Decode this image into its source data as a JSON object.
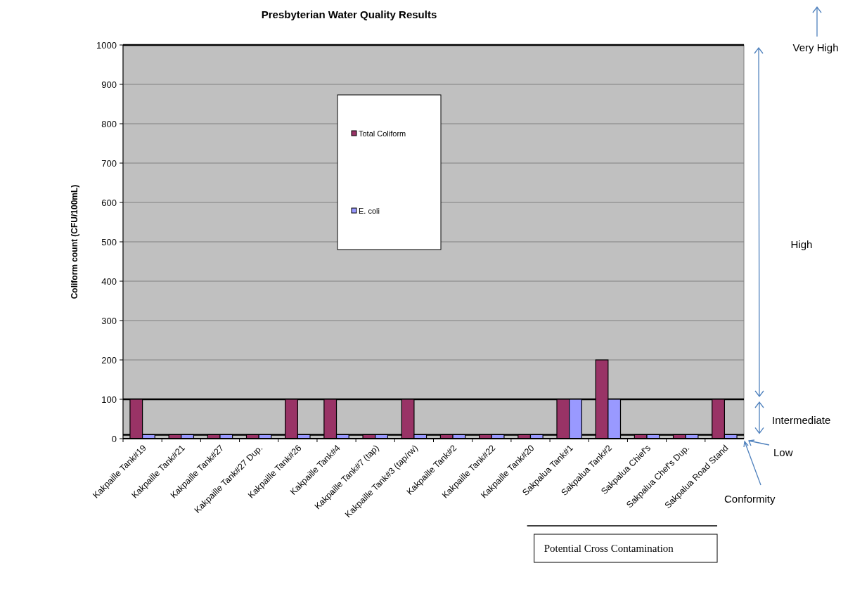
{
  "chart_data": {
    "type": "bar",
    "title": "Presbyterian Water Quality Results",
    "ylabel": "Coliform count (CFU/100mL)",
    "categories": [
      "Kakpaille Tank#19",
      "Kakpaille Tank#21",
      "Kakpaille Tank#27",
      "Kakpaille Tank#27 Dup.",
      "Kakpaille Tank#26",
      "Kakpaille Tank#4",
      "Kakpaille Tank#7 (tap)",
      "Kakpaille Tank#3 (tap/rw)",
      "Kakpaille Tank#2",
      "Kakpaille Tank#22",
      "Kakpaille Tank#20",
      "Sakpalua Tank#1",
      "Sakpalua Tank#2",
      "Sakpalua Chief's",
      "Sakpalua Chef's Dup.",
      "Sakpalua Road Stand"
    ],
    "series": [
      {
        "name": "Total Coliform",
        "color": "#993366",
        "values": [
          100,
          10,
          10,
          10,
          100,
          100,
          10,
          100,
          10,
          10,
          10,
          100,
          200,
          10,
          10,
          100
        ]
      },
      {
        "name": "E. coli",
        "color": "#9999ff",
        "values": [
          10,
          10,
          10,
          10,
          10,
          10,
          10,
          10,
          10,
          10,
          10,
          100,
          100,
          10,
          10,
          10
        ]
      }
    ],
    "ylim": [
      0,
      1000
    ],
    "yticks": [
      0,
      100,
      200,
      300,
      400,
      500,
      600,
      700,
      800,
      900,
      1000
    ],
    "grid": "y",
    "legend": "top",
    "ref_lines": [
      {
        "axis": "y",
        "value": 1000,
        "color": "#000000"
      },
      {
        "axis": "y",
        "value": 100,
        "color": "#000000"
      },
      {
        "axis": "y",
        "value": 10,
        "color": "#000000"
      }
    ],
    "annotations": [
      "Very High",
      "High",
      "Intermediate",
      "Low",
      "Conformity",
      "Potential Cross Contamination"
    ]
  }
}
